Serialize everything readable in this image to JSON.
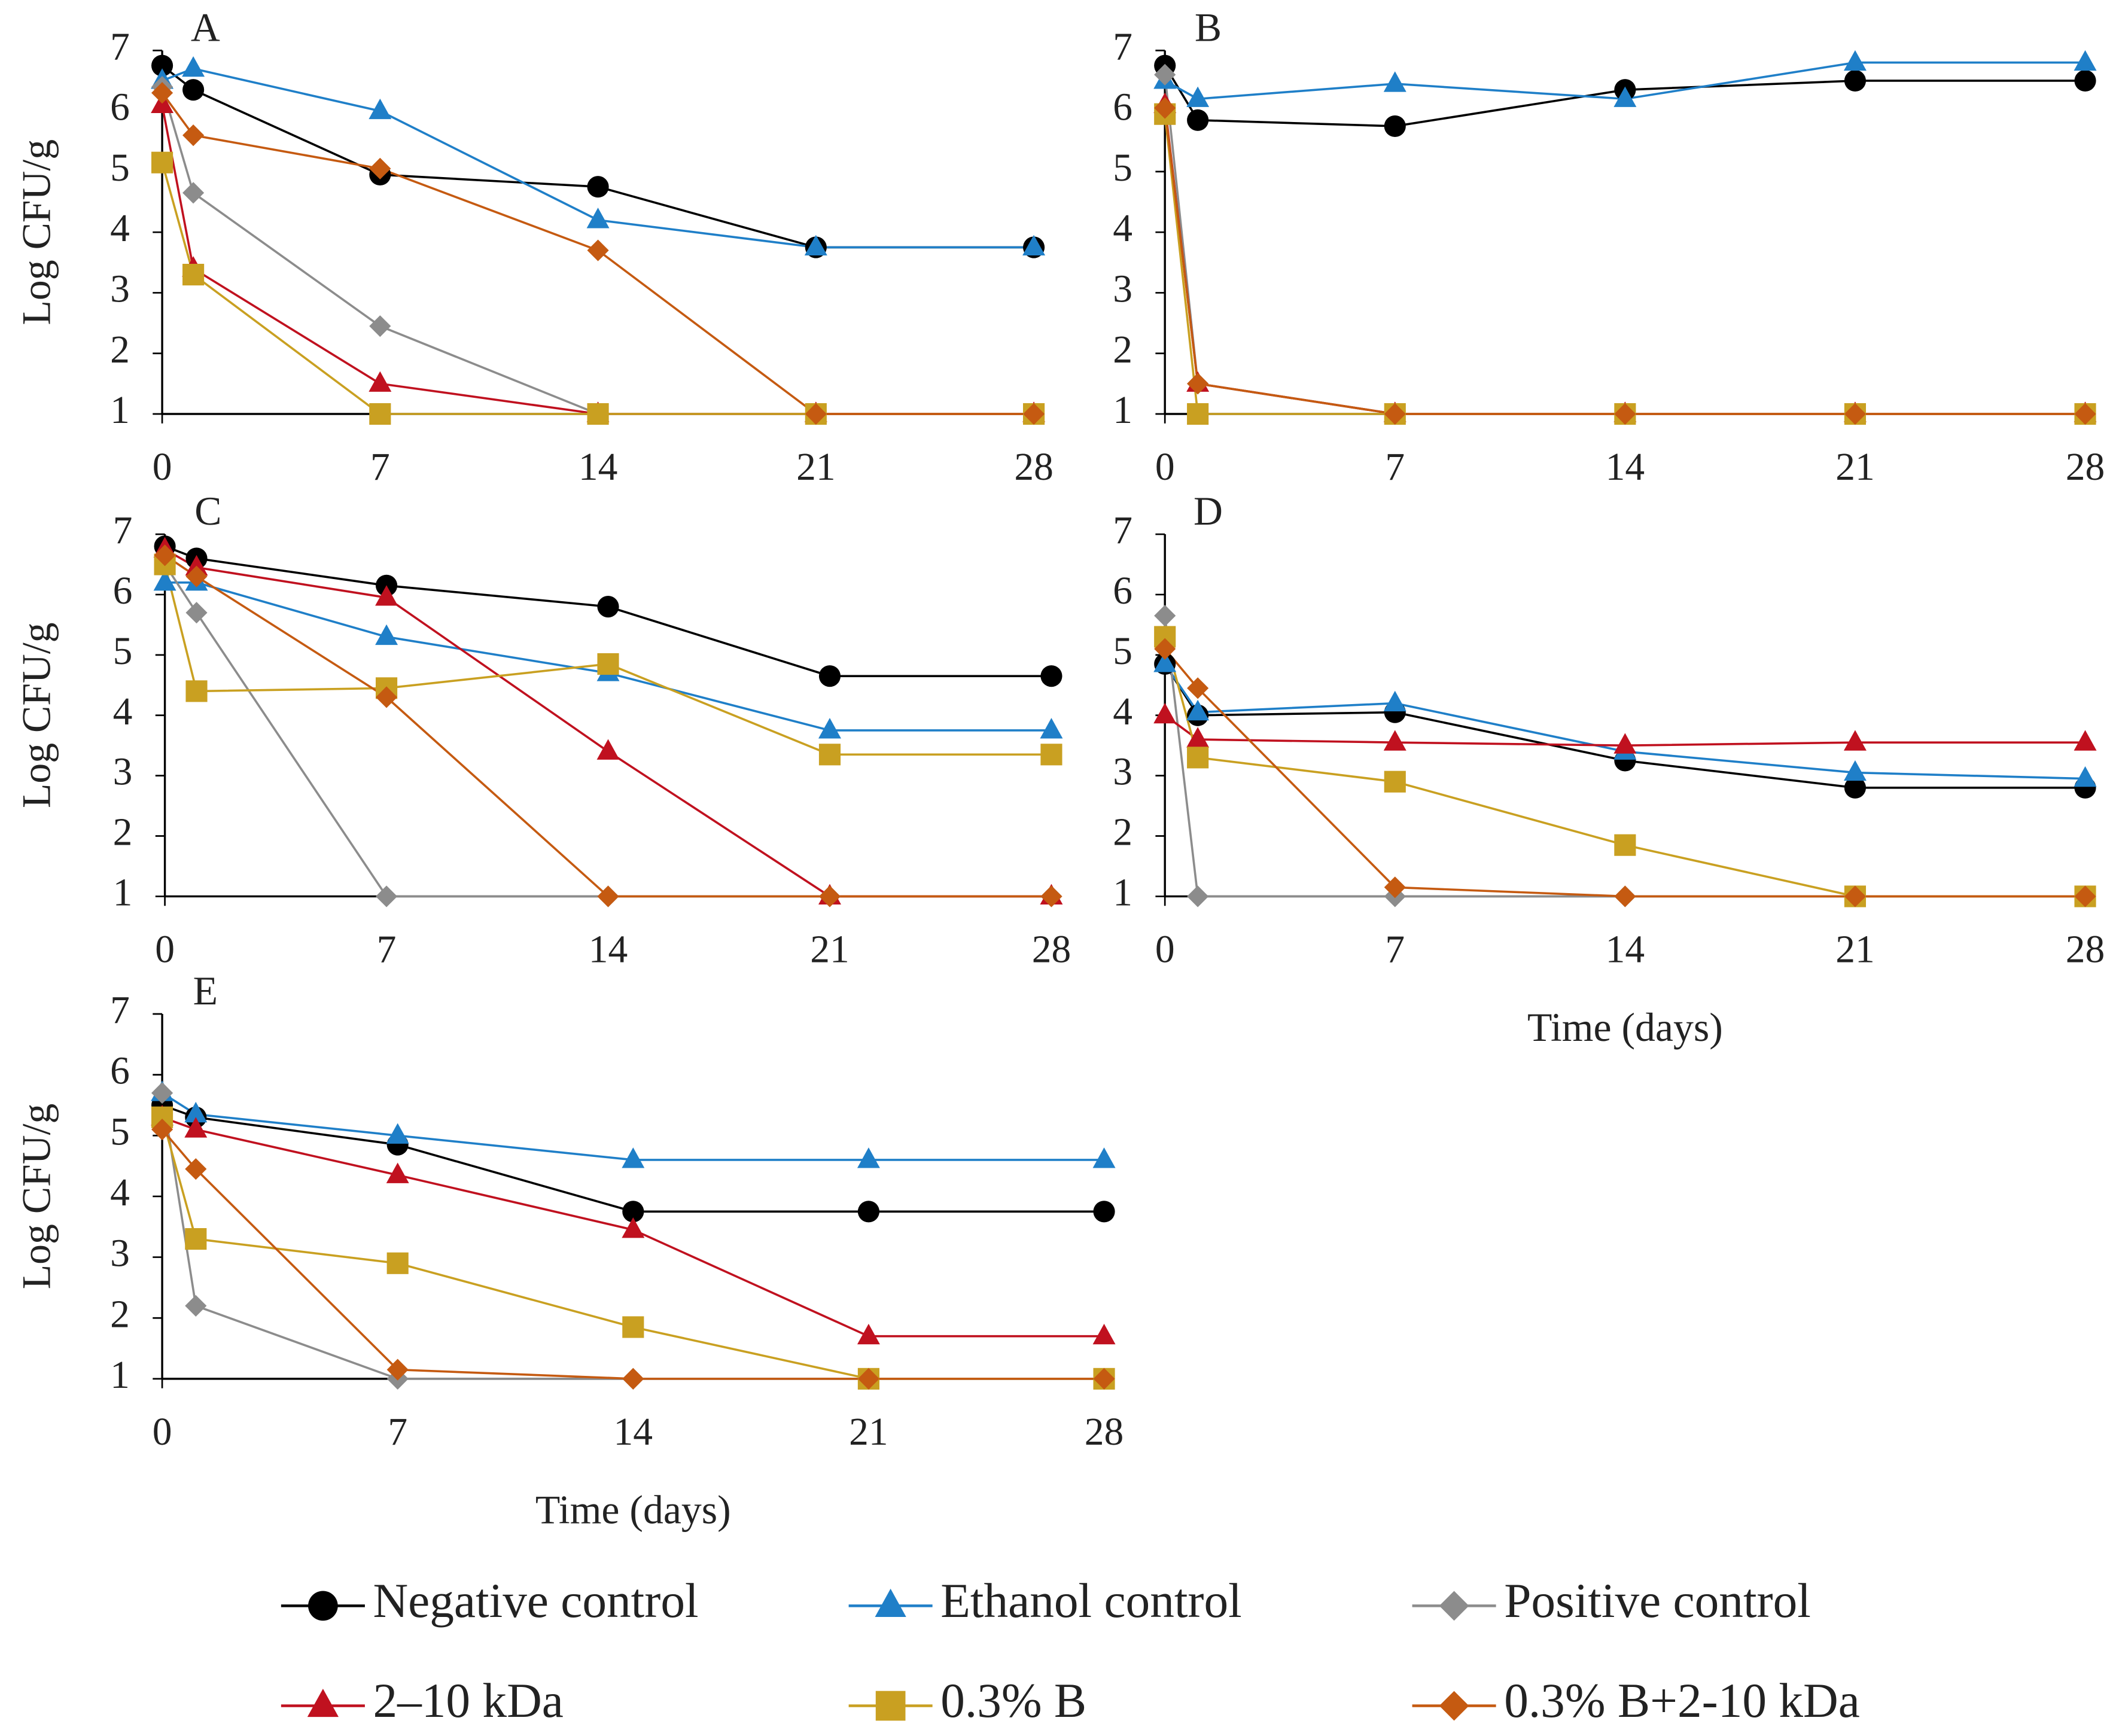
{
  "chart_data": [
    {
      "type": "line",
      "title": "A",
      "ylabel": "Log CFU/g",
      "x": [
        0,
        1,
        7,
        14,
        21,
        28
      ],
      "xlim": [
        0,
        28
      ],
      "xticks": [
        0,
        7,
        14,
        21,
        28
      ],
      "ylim": [
        1,
        7
      ],
      "yticks": [
        1,
        2,
        3,
        4,
        5,
        6,
        7
      ],
      "grid": false,
      "series": [
        {
          "name": "Negative control",
          "color": "#000000",
          "marker": "circle",
          "values": [
            6.75,
            6.35,
            4.95,
            4.75,
            3.75,
            3.75
          ]
        },
        {
          "name": "Ethanol control",
          "color": "#1f7fc8",
          "marker": "triangle",
          "values": [
            6.5,
            6.7,
            6.0,
            4.2,
            3.75,
            3.75
          ]
        },
        {
          "name": "Positive control",
          "color": "#8c8c8c",
          "marker": "diamond",
          "values": [
            6.4,
            4.65,
            2.45,
            1,
            1,
            1
          ]
        },
        {
          "name": "2–10 kDa",
          "color": "#c0111f",
          "marker": "triangle",
          "values": [
            6.1,
            3.4,
            1.5,
            1,
            1,
            1
          ]
        },
        {
          "name": "0.3% B",
          "color": "#c9a021",
          "marker": "square",
          "values": [
            5.15,
            3.3,
            1,
            1,
            1,
            1
          ]
        },
        {
          "name": "0.3% B+2-10 kDa",
          "color": "#c55a11",
          "marker": "diamond",
          "values": [
            6.3,
            5.6,
            5.05,
            3.7,
            1,
            1
          ]
        }
      ]
    },
    {
      "type": "line",
      "title": "B",
      "x": [
        0,
        1,
        7,
        14,
        21,
        28
      ],
      "xlim": [
        0,
        28
      ],
      "xticks": [
        0,
        7,
        14,
        21,
        28
      ],
      "ylim": [
        1,
        7
      ],
      "yticks": [
        1,
        2,
        3,
        4,
        5,
        6,
        7
      ],
      "grid": false,
      "series": [
        {
          "name": "Negative control",
          "color": "#000000",
          "marker": "circle",
          "values": [
            6.75,
            5.85,
            5.75,
            6.35,
            6.5,
            6.5
          ]
        },
        {
          "name": "Ethanol control",
          "color": "#1f7fc8",
          "marker": "triangle",
          "values": [
            6.5,
            6.2,
            6.45,
            6.2,
            6.8,
            6.8
          ]
        },
        {
          "name": "Positive control",
          "color": "#8c8c8c",
          "marker": "diamond",
          "values": [
            6.6,
            1.5,
            1,
            1,
            1,
            1
          ]
        },
        {
          "name": "2–10 kDa",
          "color": "#c0111f",
          "marker": "triangle",
          "values": [
            6.1,
            1.5,
            1,
            1,
            1,
            1
          ]
        },
        {
          "name": "0.3% B",
          "color": "#c9a021",
          "marker": "square",
          "values": [
            5.95,
            1,
            1,
            1,
            1,
            1
          ]
        },
        {
          "name": "0.3% B+2-10 kDa",
          "color": "#c55a11",
          "marker": "diamond",
          "values": [
            6.05,
            1.5,
            1,
            1,
            1,
            1
          ]
        }
      ]
    },
    {
      "type": "line",
      "title": "C",
      "ylabel": "Log CFU/g",
      "x": [
        0,
        1,
        7,
        14,
        21,
        28
      ],
      "xlim": [
        0,
        28
      ],
      "xticks": [
        0,
        7,
        14,
        21,
        28
      ],
      "ylim": [
        1,
        7
      ],
      "yticks": [
        1,
        2,
        3,
        4,
        5,
        6,
        7
      ],
      "grid": false,
      "series": [
        {
          "name": "Negative control",
          "color": "#000000",
          "marker": "circle",
          "values": [
            6.8,
            6.6,
            6.15,
            5.8,
            4.65,
            4.65
          ]
        },
        {
          "name": "Ethanol control",
          "color": "#1f7fc8",
          "marker": "triangle",
          "values": [
            6.2,
            6.2,
            5.3,
            4.7,
            3.75,
            3.75
          ]
        },
        {
          "name": "Positive control",
          "color": "#8c8c8c",
          "marker": "diamond",
          "values": [
            6.5,
            5.7,
            1,
            1,
            1,
            1
          ]
        },
        {
          "name": "2–10 kDa",
          "color": "#c0111f",
          "marker": "triangle",
          "values": [
            6.75,
            6.45,
            5.95,
            3.4,
            1,
            1
          ]
        },
        {
          "name": "0.3% B",
          "color": "#c9a021",
          "marker": "square",
          "values": [
            6.5,
            4.4,
            4.45,
            4.85,
            3.35,
            3.35
          ]
        },
        {
          "name": "0.3% B+2-10 kDa",
          "color": "#c55a11",
          "marker": "diamond",
          "values": [
            6.65,
            6.3,
            4.3,
            1,
            1,
            1
          ]
        }
      ]
    },
    {
      "type": "line",
      "title": "D",
      "xlabel": "Time (days)",
      "x": [
        0,
        1,
        7,
        14,
        21,
        28
      ],
      "xlim": [
        0,
        28
      ],
      "xticks": [
        0,
        7,
        14,
        21,
        28
      ],
      "ylim": [
        1,
        7
      ],
      "yticks": [
        1,
        2,
        3,
        4,
        5,
        6,
        7
      ],
      "grid": false,
      "series": [
        {
          "name": "Negative control",
          "color": "#000000",
          "marker": "circle",
          "values": [
            4.85,
            4.0,
            4.05,
            3.25,
            2.8,
            2.8
          ]
        },
        {
          "name": "Ethanol control",
          "color": "#1f7fc8",
          "marker": "triangle",
          "values": [
            4.85,
            4.05,
            4.2,
            3.4,
            3.05,
            2.95
          ]
        },
        {
          "name": "Positive control",
          "color": "#8c8c8c",
          "marker": "diamond",
          "values": [
            5.65,
            1,
            1,
            1,
            1,
            1
          ]
        },
        {
          "name": "2–10 kDa",
          "color": "#c0111f",
          "marker": "triangle",
          "values": [
            4.0,
            3.6,
            3.55,
            3.5,
            3.55,
            3.55
          ]
        },
        {
          "name": "0.3% B",
          "color": "#c9a021",
          "marker": "square",
          "values": [
            5.3,
            3.3,
            2.9,
            1.85,
            1,
            1
          ]
        },
        {
          "name": "0.3% B+2-10 kDa",
          "color": "#c55a11",
          "marker": "diamond",
          "values": [
            5.1,
            4.45,
            1.15,
            1,
            1,
            1
          ]
        }
      ]
    },
    {
      "type": "line",
      "title": "E",
      "ylabel": "Log CFU/g",
      "xlabel": "Time (days)",
      "x": [
        0,
        1,
        7,
        14,
        21,
        28
      ],
      "xlim": [
        0,
        28
      ],
      "xticks": [
        0,
        7,
        14,
        21,
        28
      ],
      "ylim": [
        1,
        7
      ],
      "yticks": [
        1,
        2,
        3,
        4,
        5,
        6,
        7
      ],
      "grid": false,
      "series": [
        {
          "name": "Negative control",
          "color": "#000000",
          "marker": "circle",
          "values": [
            5.5,
            5.3,
            4.85,
            3.75,
            3.75,
            3.75
          ]
        },
        {
          "name": "Ethanol control",
          "color": "#1f7fc8",
          "marker": "triangle",
          "values": [
            5.7,
            5.35,
            5.0,
            4.6,
            4.6,
            4.6
          ]
        },
        {
          "name": "Positive control",
          "color": "#8c8c8c",
          "marker": "diamond",
          "values": [
            5.7,
            2.2,
            1,
            1,
            1,
            1
          ]
        },
        {
          "name": "2–10 kDa",
          "color": "#c0111f",
          "marker": "triangle",
          "values": [
            5.3,
            5.1,
            4.35,
            3.45,
            1.7,
            1.7
          ]
        },
        {
          "name": "0.3% B",
          "color": "#c9a021",
          "marker": "square",
          "values": [
            5.3,
            3.3,
            2.9,
            1.85,
            1,
            1
          ]
        },
        {
          "name": "0.3% B+2-10 kDa",
          "color": "#c55a11",
          "marker": "diamond",
          "values": [
            5.1,
            4.45,
            1.15,
            1,
            1,
            1
          ]
        }
      ]
    }
  ]
}
